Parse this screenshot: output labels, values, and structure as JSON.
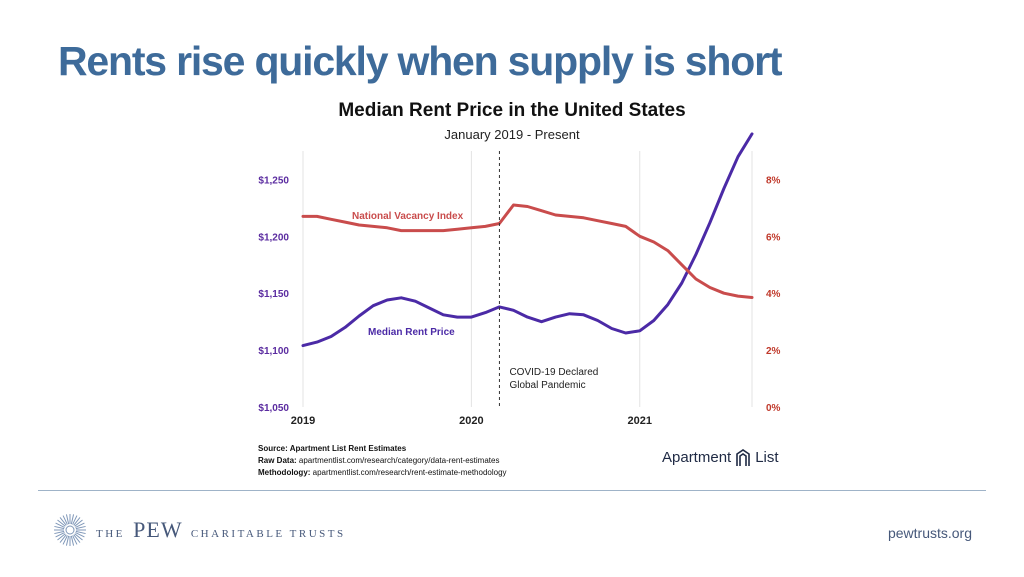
{
  "slide": {
    "title": "Rents rise quickly when supply is short"
  },
  "chart_data": {
    "type": "line",
    "title": "Median Rent Price in the United States",
    "subtitle": "January 2019 - Present",
    "x_tick_labels": [
      "2019",
      "2020",
      "2021"
    ],
    "x_ticks": [
      "2019-01",
      "2020-01",
      "2021-01"
    ],
    "x_range": [
      "2019-01",
      "2021-09"
    ],
    "y_left": {
      "range": [
        1050,
        1275
      ],
      "tick_values": [
        1050,
        1100,
        1150,
        1200,
        1250
      ],
      "tick_labels": [
        "$1,050",
        "$1,100",
        "$1,150",
        "$1,200",
        "$1,250"
      ],
      "color": "#5b2ca0"
    },
    "y_right": {
      "range": [
        0,
        9
      ],
      "tick_values": [
        0,
        2,
        4,
        6,
        8
      ],
      "tick_labels": [
        "0%",
        "2%",
        "4%",
        "6%",
        "8%"
      ],
      "color": "#c0392b"
    },
    "grid": "vertical",
    "x": [
      "2019-01",
      "2019-02",
      "2019-03",
      "2019-04",
      "2019-05",
      "2019-06",
      "2019-07",
      "2019-08",
      "2019-09",
      "2019-10",
      "2019-11",
      "2019-12",
      "2020-01",
      "2020-02",
      "2020-03",
      "2020-04",
      "2020-05",
      "2020-06",
      "2020-07",
      "2020-08",
      "2020-09",
      "2020-10",
      "2020-11",
      "2020-12",
      "2021-01",
      "2021-02",
      "2021-03",
      "2021-04",
      "2021-05",
      "2021-06",
      "2021-07",
      "2021-08",
      "2021-09"
    ],
    "series": [
      {
        "name": "Median Rent Price",
        "axis": "left",
        "color": "#4b2aa6",
        "values": [
          1104,
          1107,
          1112,
          1120,
          1130,
          1139,
          1144,
          1146,
          1143,
          1137,
          1131,
          1129,
          1129,
          1133,
          1138,
          1135,
          1129,
          1125,
          1129,
          1132,
          1131,
          1126,
          1119,
          1115,
          1117,
          1126,
          1140,
          1159,
          1184,
          1212,
          1242,
          1270,
          1290
        ]
      },
      {
        "name": "National Vacancy Index",
        "axis": "right",
        "color": "#c94c4c",
        "values": [
          6.7,
          6.7,
          6.6,
          6.5,
          6.4,
          6.35,
          6.3,
          6.2,
          6.2,
          6.2,
          6.2,
          6.25,
          6.3,
          6.35,
          6.45,
          7.1,
          7.05,
          6.9,
          6.75,
          6.7,
          6.65,
          6.55,
          6.45,
          6.35,
          6.0,
          5.8,
          5.5,
          5.0,
          4.5,
          4.2,
          4.0,
          3.9,
          3.85
        ]
      }
    ],
    "annotations": [
      {
        "x": "2020-03",
        "style": "dashed-vertical",
        "text": [
          "COVID-19 Declared",
          "Global Pandemic"
        ]
      }
    ]
  },
  "source": {
    "line1_bold": "Source: Apartment List Rent Estimates",
    "line2_bold": "Raw Data:",
    "line2": " apartmentlist.com/research/category/data-rent-estimates",
    "line3_bold": "Methodology:",
    "line3": " apartmentlist.com/research/rent-estimate-methodology"
  },
  "logos": {
    "apartment_list": {
      "left": "Apartment",
      "right": "List"
    }
  },
  "footer": {
    "org_the": "THE",
    "org_pew": "PEW",
    "org_rest": "CHARITABLE TRUSTS",
    "site": "pewtrusts.org"
  },
  "colors": {
    "title": "#3e6b9a",
    "rent_line": "#4b2aa6",
    "vacancy_line": "#c94c4c",
    "left_axis": "#5b2ca0",
    "right_axis": "#c0392b",
    "footer_text": "#46587a"
  }
}
